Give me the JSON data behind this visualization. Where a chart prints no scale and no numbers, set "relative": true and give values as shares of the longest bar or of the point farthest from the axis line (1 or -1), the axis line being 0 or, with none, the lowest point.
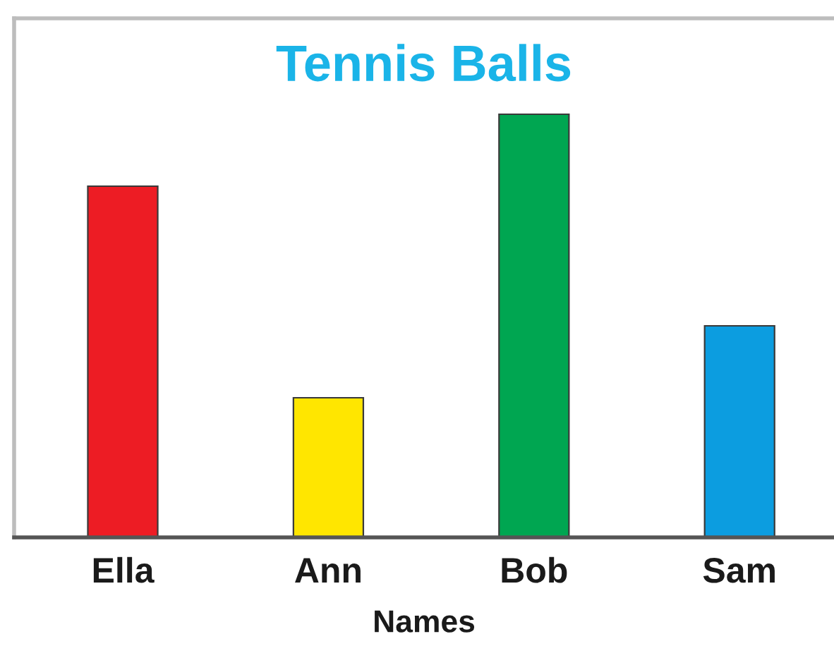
{
  "chart_data": {
    "type": "bar",
    "title": "Tennis Balls",
    "xlabel": "Names",
    "categories": [
      "Ella",
      "Ann",
      "Bob",
      "Sam"
    ],
    "values": [
      0.83,
      0.33,
      1,
      0.5
    ],
    "colors": [
      "#ed1c24",
      "#ffe600",
      "#00a651",
      "#0c9de0"
    ],
    "relative": true
  }
}
